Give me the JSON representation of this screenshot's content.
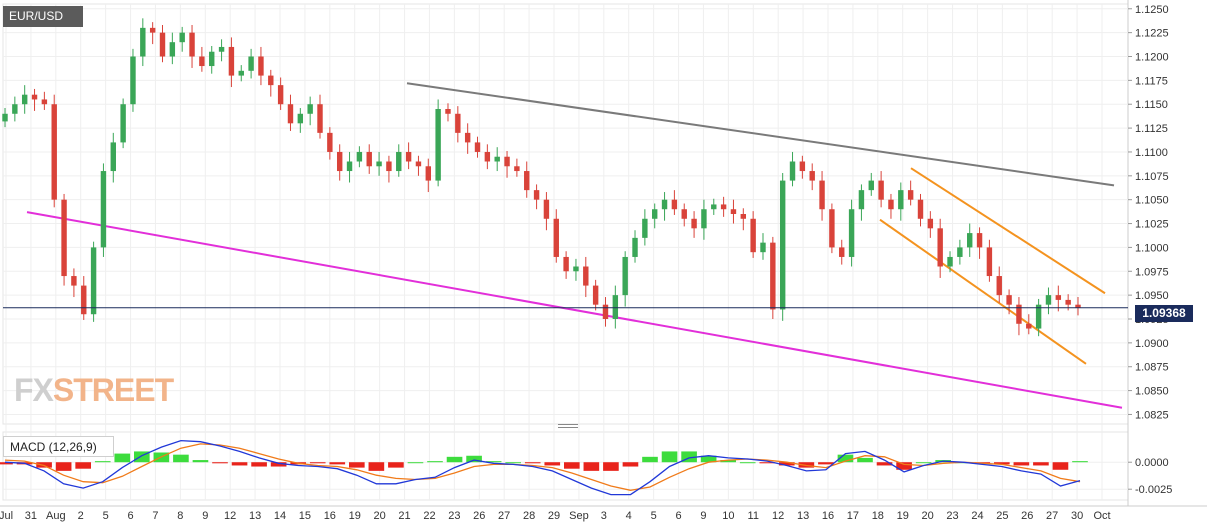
{
  "chart_data": [
    {
      "type": "candlestick",
      "title": "EUR/USD",
      "ylim": [
        1.0815,
        1.1255
      ],
      "yticks": [
        "1.1250",
        "1.1225",
        "1.1200",
        "1.1175",
        "1.1150",
        "1.1125",
        "1.1100",
        "1.1075",
        "1.1050",
        "1.1025",
        "1.1000",
        "1.0975",
        "1.0950",
        "1.0925",
        "1.0900",
        "1.0875",
        "1.0850",
        "1.0825"
      ],
      "xticks": [
        "Jul",
        "31",
        "Aug",
        "2",
        "5",
        "6",
        "7",
        "8",
        "9",
        "12",
        "13",
        "14",
        "15",
        "16",
        "19",
        "20",
        "21",
        "22",
        "23",
        "26",
        "27",
        "28",
        "29",
        "Sep",
        "3",
        "4",
        "5",
        "6",
        "9",
        "10",
        "11",
        "12",
        "13",
        "16",
        "17",
        "18",
        "19",
        "20",
        "23",
        "24",
        "25",
        "26",
        "27",
        "30",
        "Oct"
      ],
      "last_price": "1.09368",
      "last_value": 1.09368,
      "grid": true,
      "colors": {
        "up": "#3aa657",
        "down": "#d9433a",
        "resistance": "#7a7a7a",
        "support": "#e22fd9",
        "channel": "#f4931f",
        "price_line": "#1a2b5c"
      },
      "close_series": [
        1.114,
        1.115,
        1.116,
        1.1155,
        1.115,
        1.105,
        1.097,
        1.096,
        1.093,
        1.1,
        1.108,
        1.111,
        1.115,
        1.12,
        1.123,
        1.1225,
        1.12,
        1.1215,
        1.1225,
        1.12,
        1.119,
        1.1205,
        1.121,
        1.118,
        1.1185,
        1.12,
        1.118,
        1.117,
        1.115,
        1.113,
        1.114,
        1.115,
        1.112,
        1.11,
        1.108,
        1.109,
        1.11,
        1.1085,
        1.109,
        1.108,
        1.11,
        1.109,
        1.1085,
        1.107,
        1.1145,
        1.114,
        1.112,
        1.111,
        1.11,
        1.109,
        1.1095,
        1.1085,
        1.108,
        1.106,
        1.105,
        1.103,
        1.099,
        1.0975,
        1.098,
        1.096,
        1.094,
        1.0925,
        1.095,
        1.099,
        1.101,
        1.103,
        1.104,
        1.105,
        1.104,
        1.103,
        1.102,
        1.104,
        1.1045,
        1.104,
        1.1035,
        1.103,
        1.0995,
        1.1005,
        1.0935,
        1.107,
        1.109,
        1.108,
        1.107,
        1.104,
        1.1,
        1.099,
        1.104,
        1.106,
        1.107,
        1.105,
        1.104,
        1.106,
        1.105,
        1.103,
        1.102,
        1.098,
        1.099,
        1.1,
        1.1015,
        1.1,
        1.097,
        1.095,
        1.094,
        1.092,
        1.0915,
        1.094,
        1.095,
        1.0945,
        1.094,
        1.09368
      ]
    },
    {
      "type": "line",
      "title": "MACD (12,26,9)",
      "ylim": [
        -0.0035,
        0.0028
      ],
      "yticks": [
        "0.0000",
        "-0.0025"
      ],
      "colors": {
        "macd": "#2138d8",
        "signal": "#f07b1a",
        "hist_up": "#3ddc3d",
        "hist_down": "#e8231b"
      },
      "macd": [
        0.0,
        -0.0001,
        -0.0008,
        -0.002,
        -0.0024,
        -0.0018,
        -0.0005,
        0.0006,
        0.0014,
        0.002,
        0.0019,
        0.0015,
        0.001,
        0.0004,
        -0.0001,
        -0.0003,
        -0.0004,
        -0.0006,
        -0.0012,
        -0.002,
        -0.002,
        -0.0016,
        -0.0014,
        -0.0005,
        0.0002,
        -0.0001,
        -0.0002,
        -0.0004,
        -0.0008,
        -0.0016,
        -0.0024,
        -0.003,
        -0.003,
        -0.0018,
        -0.0004,
        0.0004,
        0.0006,
        0.0004,
        0.0003,
        0.0001,
        -0.0003,
        -0.0008,
        -0.0007,
        0.0008,
        0.001,
        0.0002,
        -0.0009,
        -0.0003,
        0.0001,
        0.0,
        -0.0002,
        -0.0004,
        -0.0008,
        -0.0011,
        -0.0022,
        -0.0017
      ],
      "signal": [
        0.0002,
        0.0001,
        -0.0003,
        -0.0012,
        -0.0018,
        -0.0019,
        -0.0013,
        -0.0004,
        0.0005,
        0.0013,
        0.0017,
        0.0016,
        0.0013,
        0.0008,
        0.0003,
        -0.0001,
        -0.0003,
        -0.0004,
        -0.0007,
        -0.0012,
        -0.0015,
        -0.0016,
        -0.0015,
        -0.001,
        -0.0004,
        -0.0002,
        -0.0002,
        -0.0003,
        -0.0005,
        -0.001,
        -0.0016,
        -0.0022,
        -0.0026,
        -0.0023,
        -0.0014,
        -0.0006,
        0.0,
        0.0002,
        0.0003,
        0.0002,
        0.0,
        -0.0003,
        -0.0005,
        0.0001,
        0.0006,
        0.0005,
        -0.0002,
        -0.0003,
        -0.0001,
        0.0,
        -0.0001,
        -0.0002,
        -0.0005,
        -0.0008,
        -0.0015,
        -0.0018
      ]
    }
  ],
  "ui": {
    "symbol_label": "EUR/USD",
    "macd_label": "MACD (12,26,9)",
    "price_tag": "1.09368",
    "logo_main": "FX",
    "logo_accent": "STREET"
  }
}
